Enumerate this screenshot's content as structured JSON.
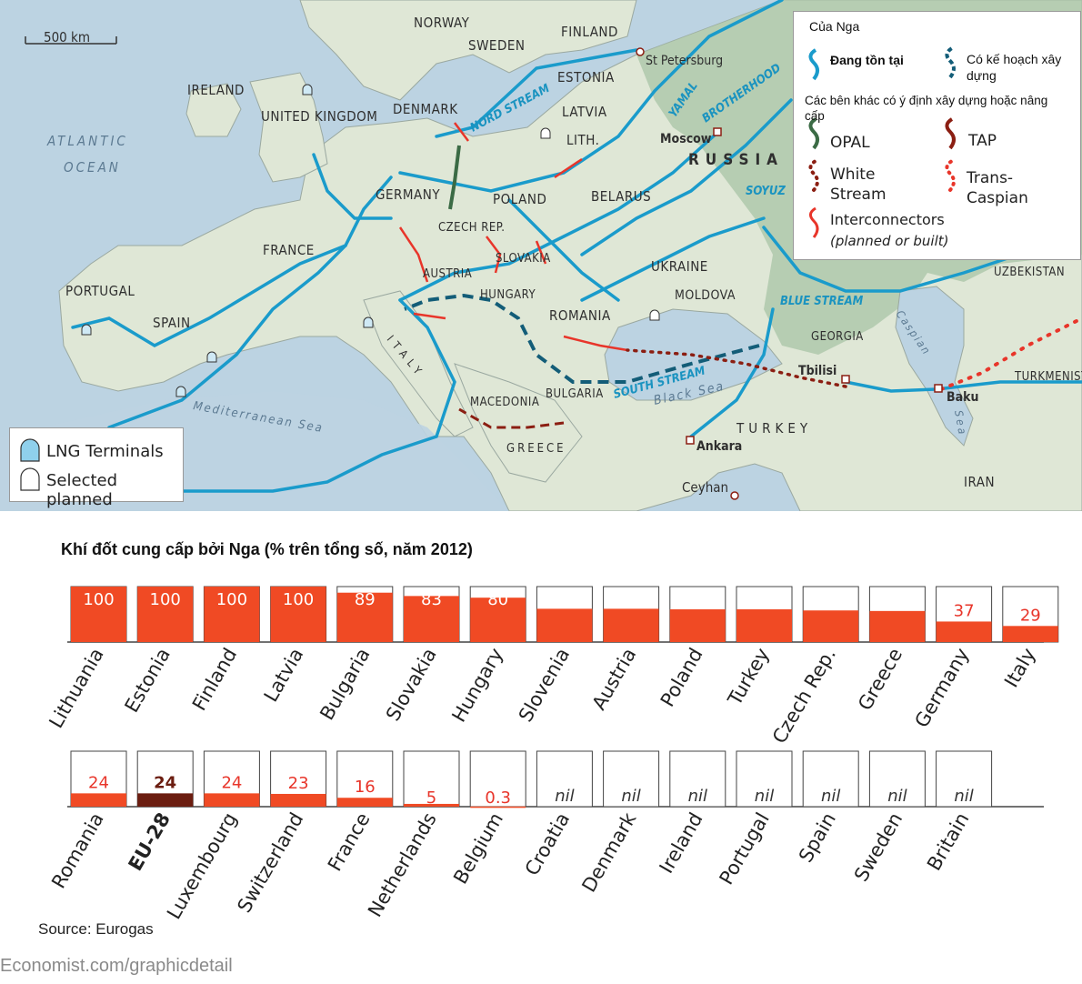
{
  "map": {
    "scale_bar": "500 km",
    "countries": [
      "NORWAY",
      "SWEDEN",
      "FINLAND",
      "ESTONIA",
      "LATVIA",
      "LITH.",
      "DENMARK",
      "IRELAND",
      "UNITED KINGDOM",
      "GERMANY",
      "POLAND",
      "BELARUS",
      "CZECH REP.",
      "AUSTRIA",
      "SLOVAKIA",
      "HUNGARY",
      "FRANCE",
      "PORTUGAL",
      "SPAIN",
      "UKRAINE",
      "MOLDOVA",
      "ROMANIA",
      "BULGARIA",
      "MACEDONIA",
      "GREECE",
      "ITALY",
      "RUSSIA",
      "GEORGIA",
      "TURKEY",
      "IRAN",
      "UZBEKISTAN",
      "TURKMENISTAN"
    ],
    "seas": [
      "ATLANTIC",
      "OCEAN",
      "Mediterranean Sea",
      "Black Sea",
      "Caspian",
      "Sea"
    ],
    "cities": [
      "St Petersburg",
      "Moscow",
      "Tbilisi",
      "Baku",
      "Ankara",
      "Ceyhan"
    ],
    "pipelines": [
      "NORD STREAM",
      "YAMAL",
      "BROTHERHOOD",
      "SOYUZ",
      "BLUE STREAM",
      "SOUTH STREAM"
    ]
  },
  "legend": {
    "title": "Của Nga",
    "existing": "Đang tồn tại",
    "planned": "Có kế hoạch xây dựng",
    "others_title": "Các bên khác có ý định xây dựng hoặc nâng cấp",
    "opal": "OPAL",
    "tap": "TAP",
    "white_stream": "White Stream",
    "trans_caspian": "Trans-Caspian",
    "interconnectors": "Interconnectors",
    "interconnectors_note": "(planned or built)",
    "colors": {
      "existing": "#1a9bcb",
      "planned": "#135d78",
      "opal": "#3b6b45",
      "tap": "#8b1e12",
      "white_stream": "#8b1e12",
      "trans_caspian": "#e8352a",
      "interconnectors": "#e8352a"
    }
  },
  "lng_legend": {
    "terminals": "LNG Terminals",
    "planned": "Selected planned"
  },
  "chart_title": "Khí đốt cung cấp bởi Nga (% trên tổng số, năm 2012)",
  "chart_data": {
    "type": "bar",
    "ylim": [
      0,
      100
    ],
    "rows": [
      {
        "categories": [
          "Lithuania",
          "Estonia",
          "Finland",
          "Latvia",
          "Bulgaria",
          "Slovakia",
          "Hungary",
          "Slovenia",
          "Austria",
          "Poland",
          "Turkey",
          "Czech Rep.",
          "Greece",
          "Germany",
          "Italy"
        ],
        "values": [
          100,
          100,
          100,
          100,
          89,
          83,
          80,
          60,
          60,
          59,
          59,
          57,
          56,
          37,
          29
        ],
        "labels": [
          "100",
          "100",
          "100",
          "100",
          "89",
          "83",
          "80",
          "60",
          "60",
          "59",
          "59",
          "57",
          "56",
          "37",
          "29"
        ]
      },
      {
        "categories": [
          "Romania",
          "EU-28",
          "Luxembourg",
          "Switzerland",
          "France",
          "Netherlands",
          "Belgium",
          "Croatia",
          "Denmark",
          "Ireland",
          "Portugal",
          "Spain",
          "Sweden",
          "Britain"
        ],
        "values": [
          24,
          24,
          24,
          23,
          16,
          5,
          0.3,
          0,
          0,
          0,
          0,
          0,
          0,
          0
        ],
        "labels": [
          "24",
          "24",
          "24",
          "23",
          "16",
          "5",
          "0.3",
          "nil",
          "nil",
          "nil",
          "nil",
          "nil",
          "nil",
          "nil"
        ]
      }
    ],
    "highlight": "EU-28",
    "colors": {
      "bar": "#f04a24",
      "highlight": "#6b1d10",
      "nil_text": "#333333"
    }
  },
  "source": "Source: Eurogas",
  "credit": "Economist.com/graphicdetail"
}
